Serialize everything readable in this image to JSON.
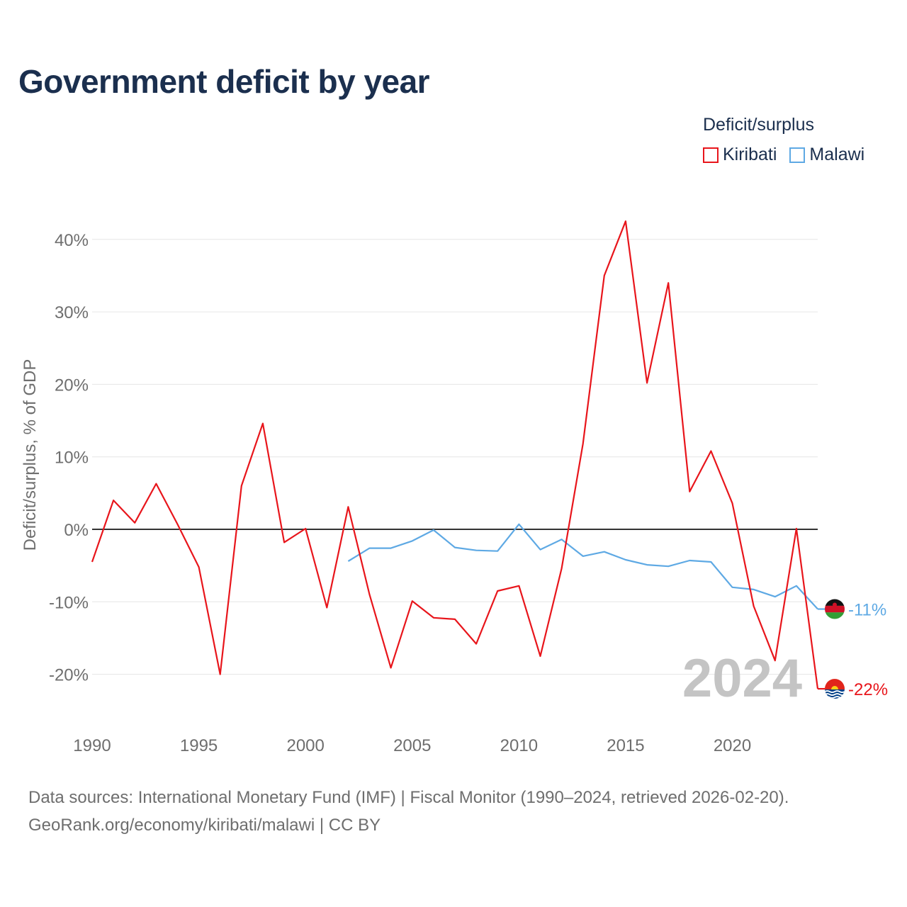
{
  "title": "Government deficit by year",
  "legend": {
    "title": "Deficit/surplus",
    "items": [
      {
        "label": "Kiribati",
        "color": "#e8151b"
      },
      {
        "label": "Malawi",
        "color": "#5ea9e4"
      }
    ]
  },
  "source": {
    "line1": "Data sources: International Monetary Fund (IMF) | Fiscal Monitor (1990–2024, retrieved 2026-02-20).",
    "line2": "GeoRank.org/economy/kiribati/malawi | CC BY"
  },
  "chart_data": {
    "type": "line",
    "title": "Government deficit by year",
    "xlabel": "",
    "ylabel": "Deficit/surplus, % of GDP",
    "xlim": [
      1990,
      2024
    ],
    "ylim": [
      -26,
      44
    ],
    "y_ticks": [
      -20,
      -10,
      0,
      10,
      20,
      30,
      40
    ],
    "y_tick_labels": [
      "-20%",
      "-10%",
      "0%",
      "10%",
      "20%",
      "30%",
      "40%"
    ],
    "x_ticks": [
      1990,
      1995,
      2000,
      2005,
      2010,
      2015,
      2020
    ],
    "x_tick_labels": [
      "1990",
      "1995",
      "2000",
      "2005",
      "2010",
      "2015",
      "2020"
    ],
    "year_watermark": "2024",
    "series": [
      {
        "name": "Kiribati",
        "color": "#e8151b",
        "end_label": "-22%",
        "x": [
          1990,
          1991,
          1992,
          1993,
          1994,
          1995,
          1996,
          1997,
          1998,
          1999,
          2000,
          2001,
          2002,
          2003,
          2004,
          2005,
          2006,
          2007,
          2008,
          2009,
          2010,
          2011,
          2012,
          2013,
          2014,
          2015,
          2016,
          2017,
          2018,
          2019,
          2020,
          2021,
          2022,
          2023,
          2024
        ],
        "values": [
          -4.5,
          4.0,
          0.9,
          6.3,
          0.7,
          -5.2,
          -20.0,
          6.0,
          14.6,
          -1.8,
          0.1,
          -10.8,
          3.1,
          -9.0,
          -19.1,
          -9.9,
          -12.2,
          -12.4,
          -15.8,
          -8.5,
          -7.8,
          -17.5,
          -5.4,
          11.8,
          35.0,
          42.5,
          20.2,
          34.0,
          5.2,
          10.8,
          3.6,
          -10.6,
          -18.1,
          0.1,
          -22.0
        ]
      },
      {
        "name": "Malawi",
        "color": "#5ea9e4",
        "end_label": "-11%",
        "x": [
          2002,
          2003,
          2004,
          2005,
          2006,
          2007,
          2008,
          2009,
          2010,
          2011,
          2012,
          2013,
          2014,
          2015,
          2016,
          2017,
          2018,
          2019,
          2020,
          2021,
          2022,
          2023,
          2024
        ],
        "values": [
          -4.4,
          -2.6,
          -2.6,
          -1.6,
          -0.1,
          -2.5,
          -2.9,
          -3.0,
          0.7,
          -2.8,
          -1.4,
          -3.7,
          -3.1,
          -4.2,
          -4.9,
          -5.1,
          -4.3,
          -4.5,
          -8.0,
          -8.3,
          -9.3,
          -7.8,
          -11.0
        ]
      }
    ]
  }
}
